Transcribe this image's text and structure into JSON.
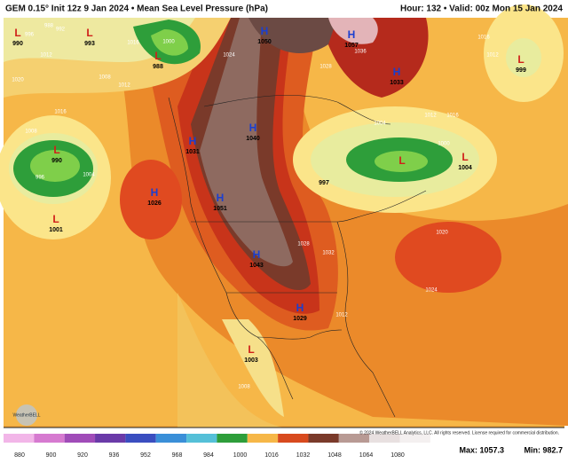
{
  "header": {
    "title": "GEM 0.15° Init 12z 9 Jan 2024 • Mean Sea Level Pressure (hPa)",
    "valid": "Hour: 132 • Valid: 00z Mon 15 Jan 2024"
  },
  "centers": [
    {
      "type": "L",
      "value": "990"
    },
    {
      "type": "L",
      "value": "993"
    },
    {
      "type": "L",
      "value": "988"
    },
    {
      "type": "H",
      "value": "1050"
    },
    {
      "type": "H",
      "value": "1057"
    },
    {
      "type": "L",
      "value": "999"
    },
    {
      "type": "H",
      "value": "1033"
    },
    {
      "type": "H",
      "value": "1040"
    },
    {
      "type": "H",
      "value": "1031"
    },
    {
      "type": "L",
      "value": "990"
    },
    {
      "type": "L",
      "value": "1004"
    },
    {
      "type": "H",
      "value": "1026"
    },
    {
      "type": "H",
      "value": "1051"
    },
    {
      "type": "L",
      "value": "1001"
    },
    {
      "type": "H",
      "value": "1043"
    },
    {
      "type": "H",
      "value": "1029"
    },
    {
      "type": "L",
      "value": "1003"
    },
    {
      "type": "L",
      "value": "997"
    }
  ],
  "isobar_labels": [
    "996",
    "988",
    "992",
    "1012",
    "1020",
    "1016",
    "1008",
    "1004",
    "1012",
    "1008",
    "1016",
    "1000",
    "1024",
    "1036",
    "1028",
    "1016",
    "1012",
    "1004",
    "1000",
    "1020",
    "1024",
    "1028",
    "1032",
    "1012",
    "1008",
    "1016",
    "1012",
    "996"
  ],
  "colorbar": {
    "ticks": [
      "880",
      "900",
      "920",
      "936",
      "952",
      "968",
      "984",
      "1000",
      "1016",
      "1032",
      "1048",
      "1064",
      "1080"
    ]
  },
  "footer": {
    "copyright": "© 2024 WeatherBELL Analytics, LLC. All rights reserved. License required for commercial distribution.",
    "max": "Max: 1057.3",
    "min": "Min: 982.7",
    "logo": "WeatherBELL"
  }
}
